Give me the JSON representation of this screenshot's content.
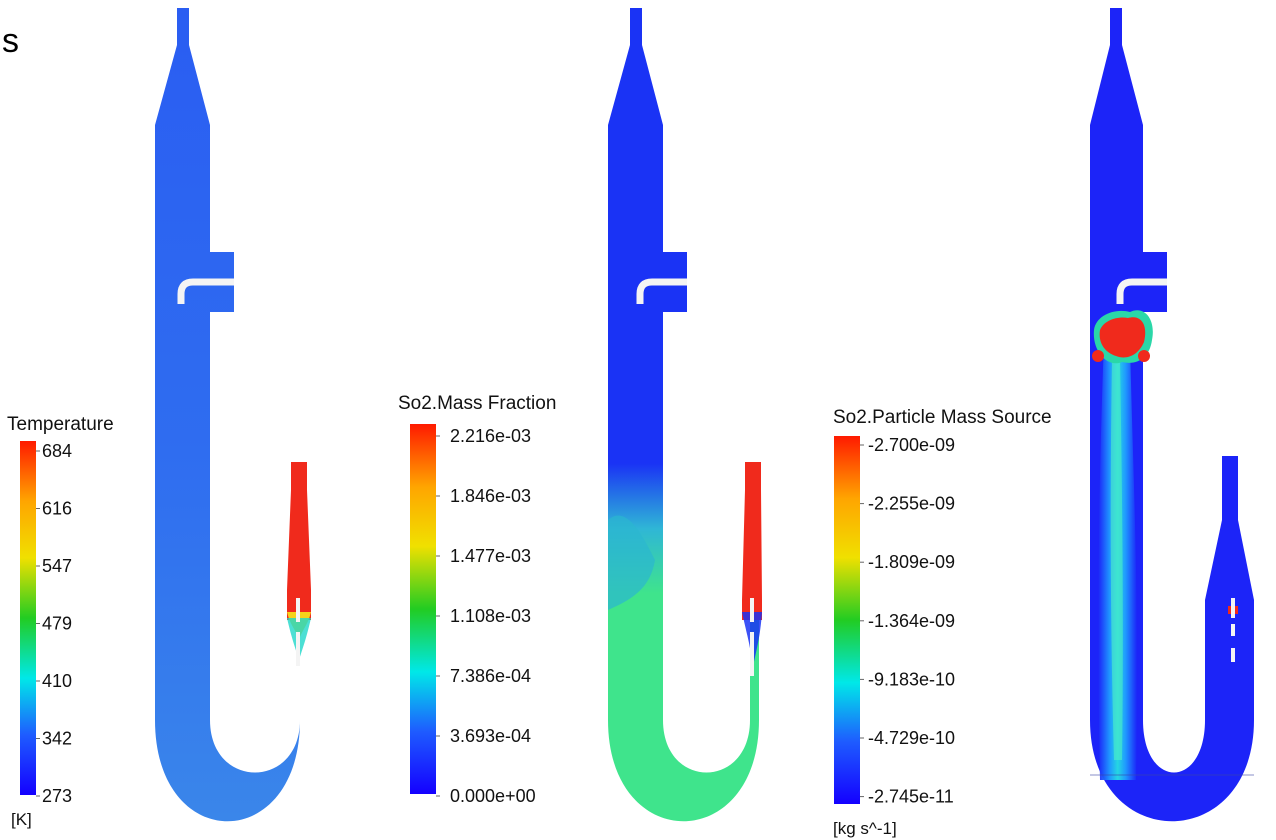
{
  "corner_label": "s",
  "legends": [
    {
      "title": "Temperature",
      "ticks": [
        "684",
        "616",
        "547",
        "479",
        "410",
        "342",
        "273"
      ],
      "unit": "[K]"
    },
    {
      "title": "So2.Mass Fraction",
      "ticks": [
        "2.216e-03",
        "1.846e-03",
        "1.477e-03",
        "1.108e-03",
        "7.386e-04",
        "3.693e-04",
        "0.000e+00"
      ],
      "unit": ""
    },
    {
      "title": "So2.Particle Mass Source",
      "ticks": [
        "-2.700e-09",
        "-2.255e-09",
        "-1.809e-09",
        "-1.364e-09",
        "-9.183e-10",
        "-4.729e-10",
        "-2.745e-11"
      ],
      "unit": "[kg s^-1]"
    }
  ],
  "colors": {
    "scale_top": "#ff1a00",
    "scale_orange": "#ffa500",
    "scale_yellow": "#f0e000",
    "scale_green": "#22cc22",
    "scale_cyan": "#00e8e8",
    "scale_blue": "#1e5cff",
    "scale_bottom": "#1400ff",
    "temperature_body": "#2f6df0",
    "mass_fraction_upper": "#1a33f5",
    "mass_fraction_lower": "#3fe48c",
    "particle_source_body": "#1c24f8",
    "hot_zone": "#f02a1c",
    "insert": "#f4f4f4"
  }
}
